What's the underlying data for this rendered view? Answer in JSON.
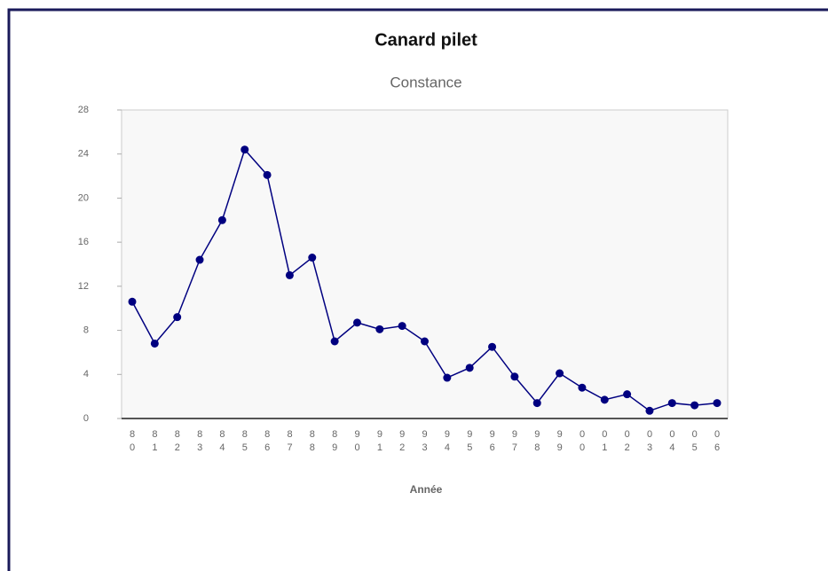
{
  "chart_data": {
    "type": "line",
    "title": "Canard pilet",
    "subtitle": "Constance",
    "x_label": "Année",
    "categories": [
      "80",
      "81",
      "82",
      "83",
      "84",
      "85",
      "86",
      "87",
      "88",
      "89",
      "90",
      "91",
      "92",
      "93",
      "94",
      "95",
      "96",
      "97",
      "98",
      "99",
      "00",
      "01",
      "02",
      "03",
      "04",
      "05",
      "06"
    ],
    "series": [
      {
        "name": "Constance",
        "color": "#000080",
        "values": [
          10.6,
          6.8,
          9.2,
          14.4,
          18.0,
          24.4,
          22.1,
          13.0,
          14.6,
          7.0,
          8.7,
          8.1,
          8.4,
          7.0,
          3.7,
          4.6,
          6.5,
          3.8,
          1.4,
          4.1,
          2.8,
          1.7,
          2.2,
          0.7,
          1.4,
          1.2,
          1.4
        ]
      }
    ],
    "ylim": [
      0,
      28
    ],
    "yticks": [
      0,
      4,
      8,
      12,
      16,
      20,
      24,
      28
    ],
    "grid": false,
    "legend": false
  }
}
